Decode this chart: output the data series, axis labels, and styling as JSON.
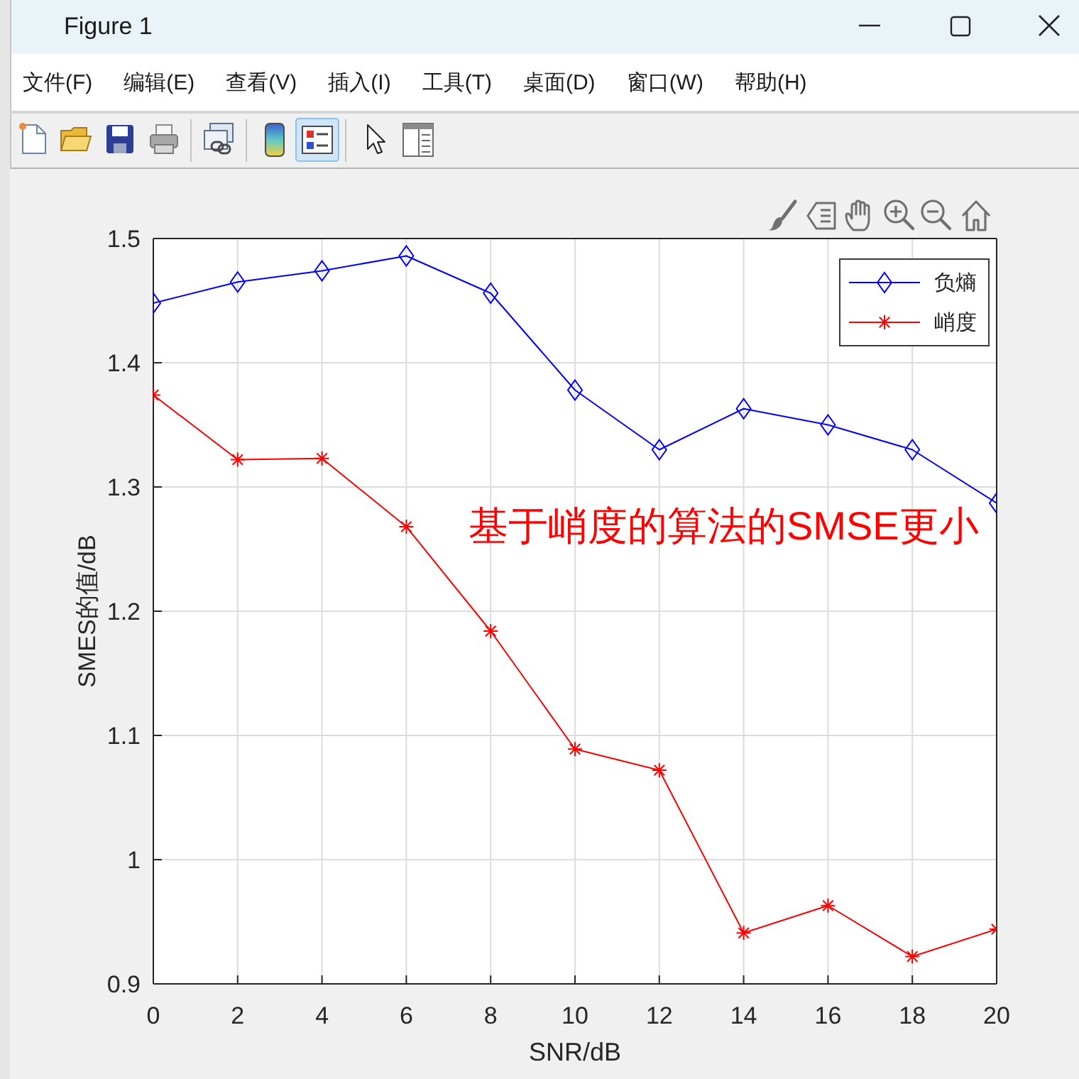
{
  "chart_data": {
    "type": "line",
    "xlabel": "SNR/dB",
    "ylabel": "SMES的值/dB",
    "x": [
      0,
      2,
      4,
      6,
      8,
      10,
      12,
      14,
      16,
      18,
      20
    ],
    "xlim": [
      0,
      20
    ],
    "xticks": [
      0,
      2,
      4,
      6,
      8,
      10,
      12,
      14,
      16,
      18,
      20
    ],
    "ylim": [
      0.9,
      1.5
    ],
    "yticks": [
      0.9,
      1,
      1.1,
      1.2,
      1.3,
      1.4,
      1.5
    ],
    "grid": true,
    "legend": "top right",
    "line_style": "solid",
    "series": [
      {
        "name": "负熵",
        "color": "#0000ff",
        "marker": "diamond",
        "values": [
          1.448,
          1.465,
          1.474,
          1.486,
          1.456,
          1.378,
          1.33,
          1.363,
          1.35,
          1.33,
          1.287
        ]
      },
      {
        "name": "峭度",
        "color": "#ff0000",
        "marker": "cross",
        "values": [
          1.374,
          1.322,
          1.323,
          1.268,
          1.184,
          1.089,
          1.072,
          0.941,
          0.963,
          0.922,
          0.944
        ]
      }
    ],
    "annotations": [
      "Figure 1",
      "文件(F)",
      "编辑(E)",
      "查看(V)",
      "插入(I)",
      "工具(T)",
      "桌面(D)",
      "窗口(W)",
      "帮助(H)",
      "基于峭度的算法的SMSE更小"
    ]
  }
}
